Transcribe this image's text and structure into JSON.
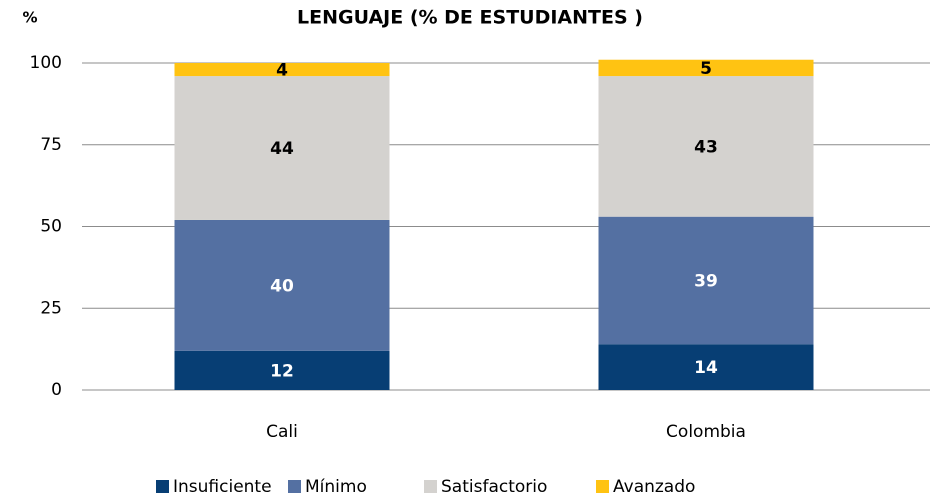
{
  "chart_data": {
    "type": "stacked_bar",
    "title": "LENGUAJE  (% DE ESTUDIANTES )",
    "y_label": "%",
    "categories": [
      "Cali",
      "Colombia"
    ],
    "series": [
      {
        "name": "Insuficiente",
        "color": "#073e74",
        "values": [
          12,
          14
        ]
      },
      {
        "name": "Mínimo",
        "color": "#5470a2",
        "values": [
          40,
          39
        ]
      },
      {
        "name": "Satisfactorio",
        "color": "#d4d2cf",
        "values": [
          44,
          43
        ]
      },
      {
        "name": "Avanzado",
        "color": "#ffc312",
        "values": [
          4,
          5
        ]
      }
    ],
    "ylim": [
      0,
      100
    ],
    "yticks": [
      0,
      25,
      50,
      75,
      100
    ],
    "grid": true,
    "legend": "bottom"
  }
}
